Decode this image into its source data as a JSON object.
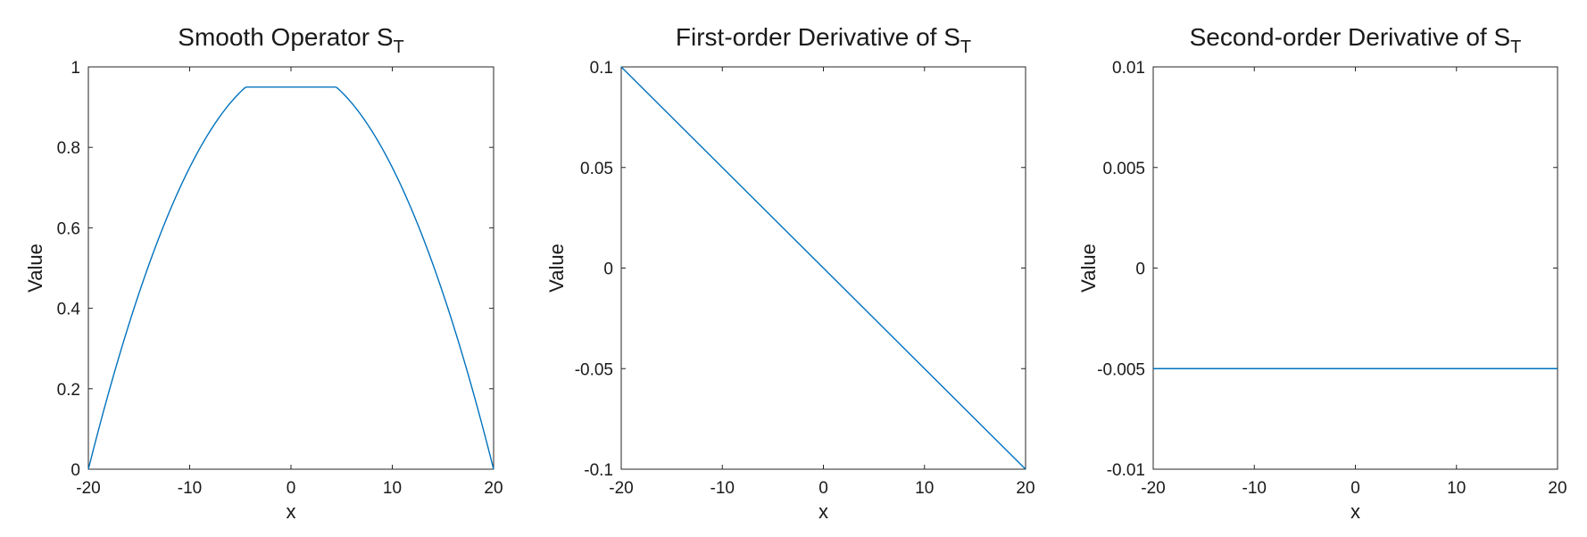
{
  "chart_data": [
    {
      "type": "line",
      "title": "Smooth Operator S",
      "title_subscript": "T",
      "xlabel": "x",
      "ylabel": "Value",
      "xlim": [
        -20,
        20
      ],
      "ylim": [
        0,
        1
      ],
      "xticks": [
        -20,
        -10,
        0,
        10,
        20
      ],
      "yticks": [
        0,
        0.2,
        0.4,
        0.6,
        0.8,
        1
      ],
      "xtick_labels": [
        "-20",
        "-10",
        "0",
        "10",
        "20"
      ],
      "ytick_labels": [
        "0",
        "0.2",
        "0.4",
        "0.6",
        "0.8",
        "1"
      ],
      "grid": false,
      "line_color": "#0072BD",
      "series": [
        {
          "x": [
            -20,
            -18,
            -16,
            -14,
            -12,
            -10,
            -8,
            -6,
            -4,
            -2,
            0,
            2,
            4,
            6,
            8,
            10,
            12,
            14,
            16,
            18,
            20
          ],
          "y": [
            0,
            0.19,
            0.36,
            0.51,
            0.64,
            0.75,
            0.84,
            0.91,
            0.96,
            0.99,
            0.95,
            0.99,
            0.96,
            0.91,
            0.84,
            0.75,
            0.64,
            0.51,
            0.36,
            0.19,
            0
          ]
        }
      ]
    },
    {
      "type": "line",
      "title": "First-order Derivative of S",
      "title_subscript": "T",
      "xlabel": "x",
      "ylabel": "Value",
      "xlim": [
        -20,
        20
      ],
      "ylim": [
        -0.1,
        0.1
      ],
      "xticks": [
        -20,
        -10,
        0,
        10,
        20
      ],
      "yticks": [
        -0.1,
        -0.05,
        0,
        0.05,
        0.1
      ],
      "xtick_labels": [
        "-20",
        "-10",
        "0",
        "10",
        "20"
      ],
      "ytick_labels": [
        "-0.1",
        "-0.05",
        "0",
        "0.05",
        "0.1"
      ],
      "grid": false,
      "line_color": "#0072BD",
      "series": [
        {
          "x": [
            -20,
            20
          ],
          "y": [
            0.1,
            -0.1
          ]
        }
      ]
    },
    {
      "type": "line",
      "title": "Second-order Derivative of S",
      "title_subscript": "T",
      "xlabel": "x",
      "ylabel": "Value",
      "xlim": [
        -20,
        20
      ],
      "ylim": [
        -0.01,
        0.01
      ],
      "xticks": [
        -20,
        -10,
        0,
        10,
        20
      ],
      "yticks": [
        -0.01,
        -0.005,
        0,
        0.005,
        0.01
      ],
      "xtick_labels": [
        "-20",
        "-10",
        "0",
        "10",
        "20"
      ],
      "ytick_labels": [
        "-0.01",
        "-0.005",
        "0",
        "0.005",
        "0.01"
      ],
      "grid": false,
      "line_color": "#0072BD",
      "series": [
        {
          "x": [
            -20,
            20
          ],
          "y": [
            -0.005,
            -0.005
          ]
        }
      ]
    }
  ]
}
